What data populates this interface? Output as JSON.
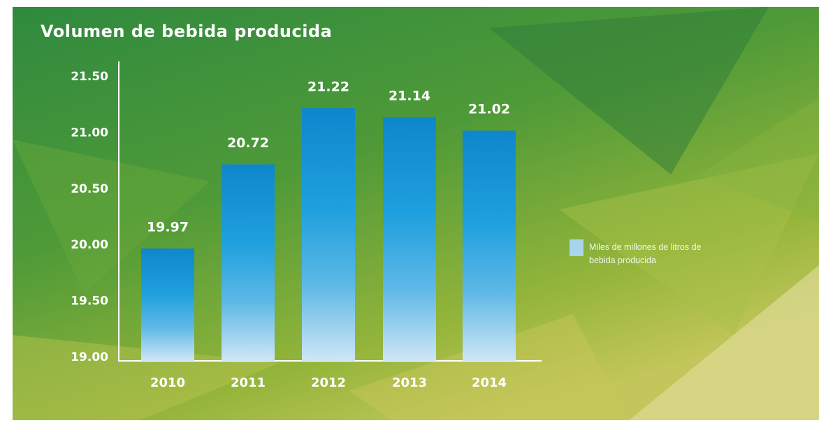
{
  "chart_data": {
    "type": "bar",
    "title": "Volumen de bebida producida",
    "categories": [
      "2010",
      "2011",
      "2012",
      "2013",
      "2014"
    ],
    "series": [
      {
        "name": "Miles de millones de litros de bebida producida",
        "color": "#0f86cc",
        "values": [
          19.97,
          20.72,
          21.22,
          21.14,
          21.02
        ]
      }
    ],
    "ylim": [
      19,
      21.5
    ],
    "yticks": [
      {
        "value": 19,
        "label": "19.00"
      },
      {
        "value": 19.5,
        "label": "19.50"
      },
      {
        "value": 20,
        "label": "20.00"
      },
      {
        "value": 20.5,
        "label": "20.50"
      },
      {
        "value": 21,
        "label": "21.00"
      },
      {
        "value": 21.5,
        "label": "21.50"
      }
    ],
    "grid": false
  }
}
